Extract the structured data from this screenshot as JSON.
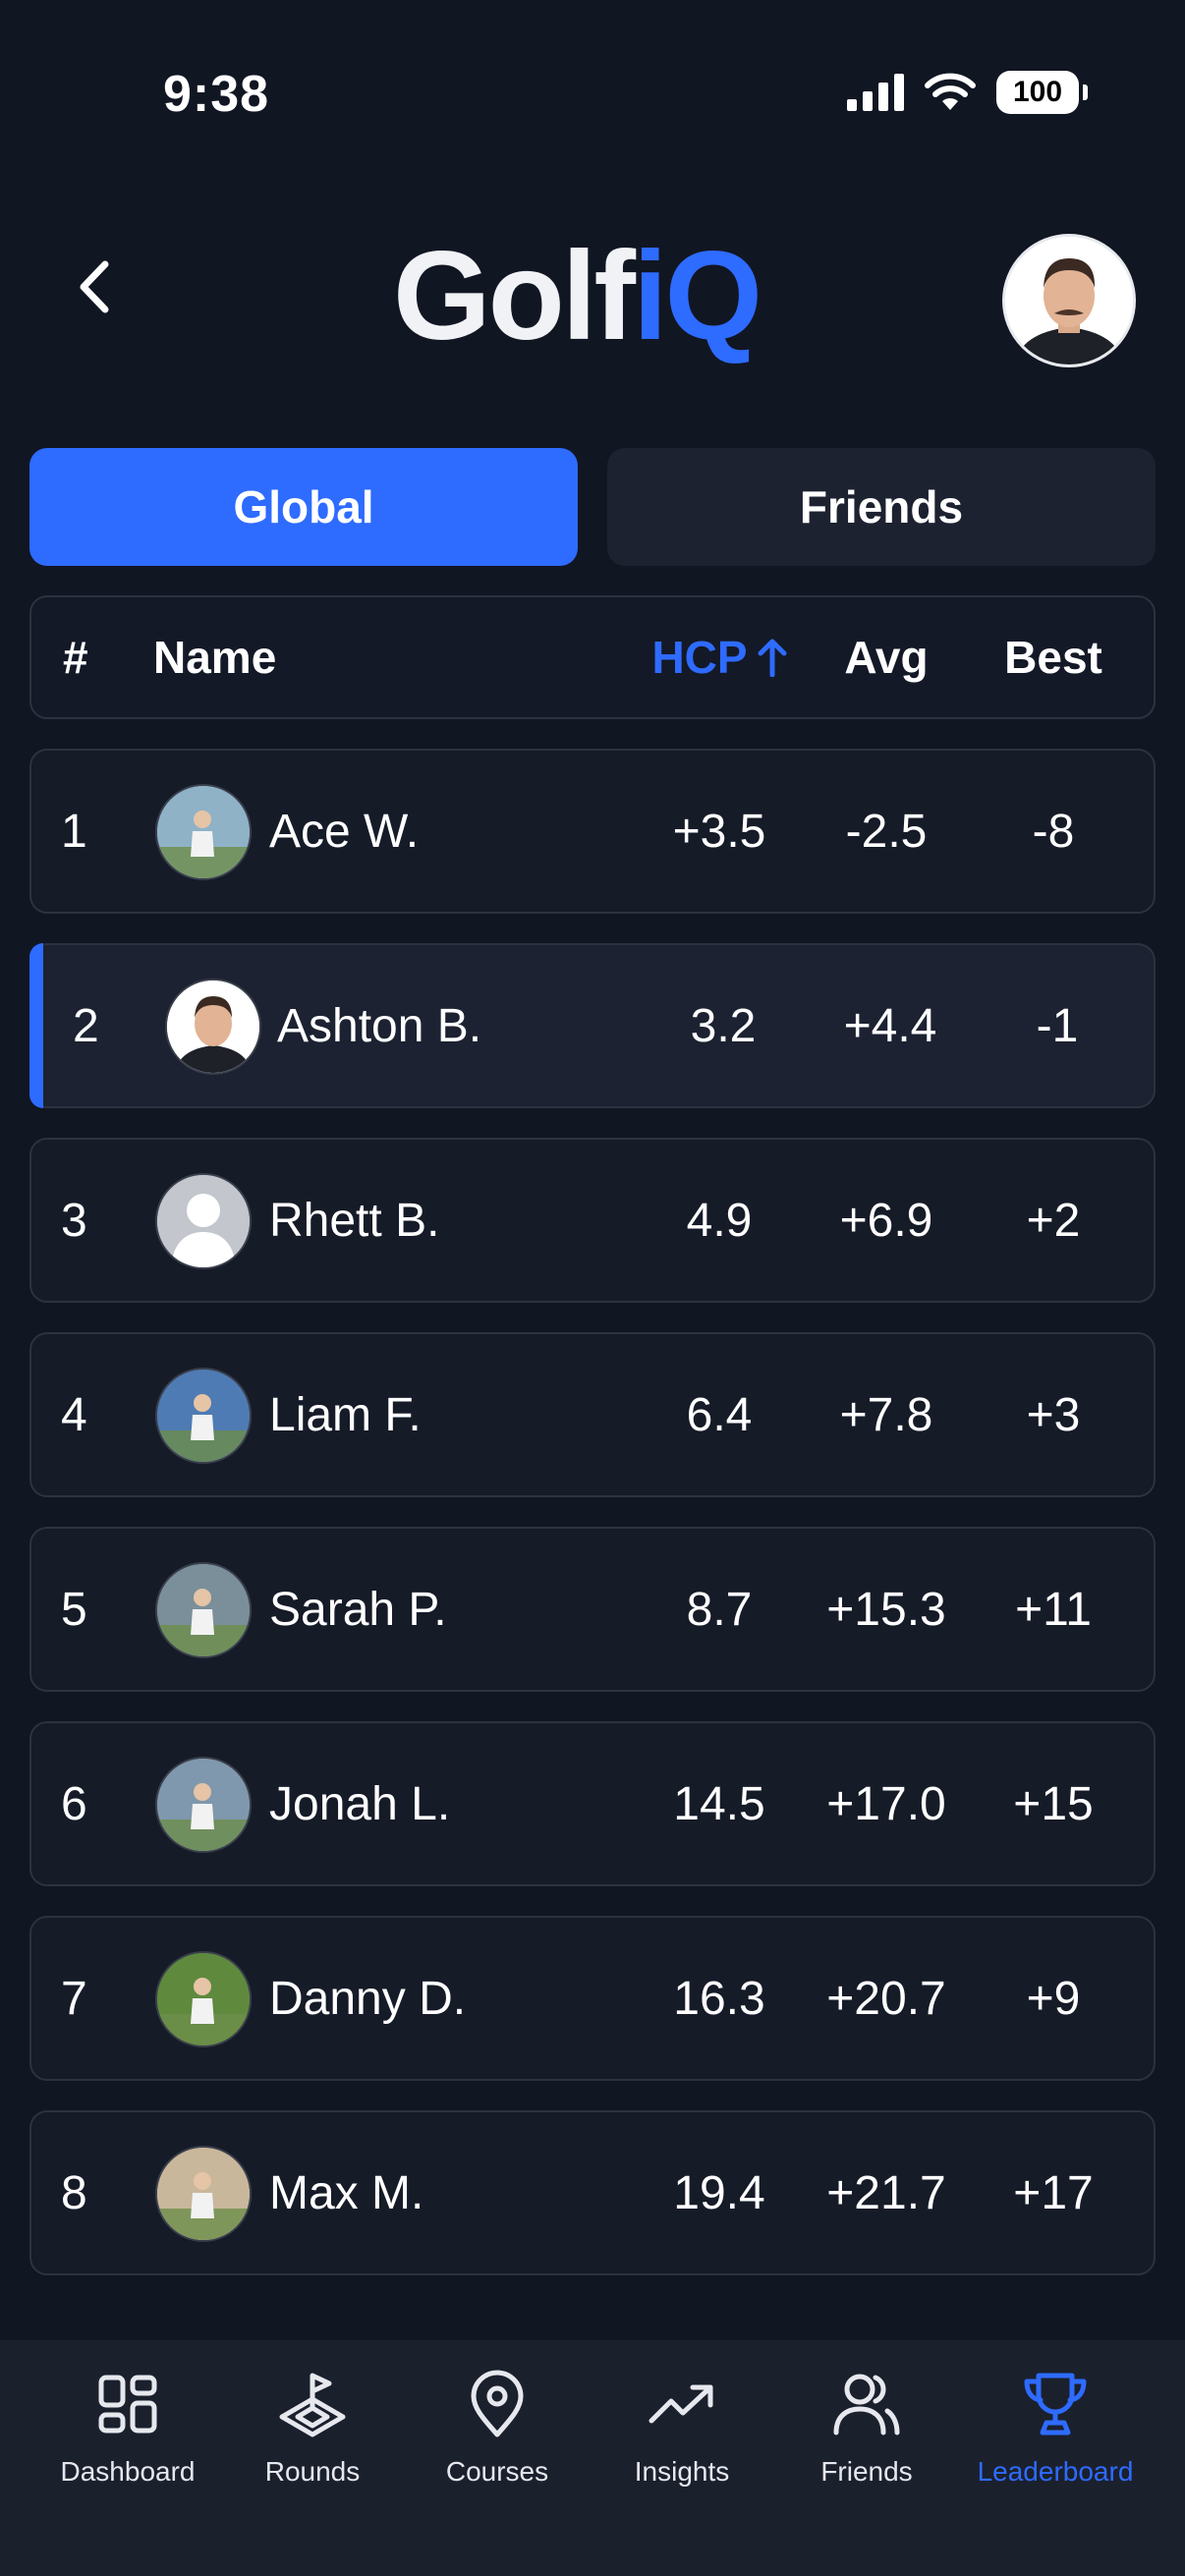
{
  "status": {
    "time": "9:38",
    "battery": "100"
  },
  "header": {
    "logo_part1": "Golf",
    "logo_part2": "iQ",
    "back_icon": "chevron-left-icon",
    "avatar_icon": "user-avatar"
  },
  "tabs": [
    {
      "label": "Global",
      "active": true
    },
    {
      "label": "Friends",
      "active": false
    }
  ],
  "table": {
    "headers": {
      "rank": "#",
      "name": "Name",
      "hcp": "HCP",
      "avg": "Avg",
      "best": "Best"
    },
    "sort_icon": "arrow-up-icon",
    "rows": [
      {
        "rank": "1",
        "name": "Ace W.",
        "hcp": "+3.5",
        "avg": "-2.5",
        "best": "-8",
        "avatar_color": "#8fb2c7",
        "avatar_icon": "golfer-photo"
      },
      {
        "rank": "2",
        "name": "Ashton B.",
        "hcp": "3.2",
        "avg": "+4.4",
        "best": "-1",
        "avatar_color": "#ffffff",
        "avatar_icon": "person-photo"
      },
      {
        "rank": "3",
        "name": "Rhett B.",
        "hcp": "4.9",
        "avg": "+6.9",
        "best": "+2",
        "avatar_color": "#bfc2c9",
        "avatar_icon": "default-user-icon"
      },
      {
        "rank": "4",
        "name": "Liam F.",
        "hcp": "6.4",
        "avg": "+7.8",
        "best": "+3",
        "avatar_color": "#4e7bb3",
        "avatar_icon": "golfer-photo"
      },
      {
        "rank": "5",
        "name": "Sarah P.",
        "hcp": "8.7",
        "avg": "+15.3",
        "best": "+11",
        "avatar_color": "#7a8f9a",
        "avatar_icon": "golfer-photo"
      },
      {
        "rank": "6",
        "name": "Jonah L.",
        "hcp": "14.5",
        "avg": "+17.0",
        "best": "+15",
        "avatar_color": "#7f98ad",
        "avatar_icon": "group-photo"
      },
      {
        "rank": "7",
        "name": "Danny D.",
        "hcp": "16.3",
        "avg": "+20.7",
        "best": "+9",
        "avatar_color": "#5f8a3d",
        "avatar_icon": "golf-ball-photo"
      },
      {
        "rank": "8",
        "name": "Max M.",
        "hcp": "19.4",
        "avg": "+21.7",
        "best": "+17",
        "avatar_color": "#c9b79c",
        "avatar_icon": "golfer-photo"
      }
    ],
    "highlight_index": 1
  },
  "nav": [
    {
      "label": "Dashboard",
      "icon": "dashboard-icon",
      "active": false
    },
    {
      "label": "Rounds",
      "icon": "flag-green-icon",
      "active": false
    },
    {
      "label": "Courses",
      "icon": "map-pin-icon",
      "active": false
    },
    {
      "label": "Insights",
      "icon": "trend-up-icon",
      "active": false
    },
    {
      "label": "Friends",
      "icon": "friends-icon",
      "active": false
    },
    {
      "label": "Leaderboard",
      "icon": "trophy-icon",
      "active": true
    }
  ],
  "colors": {
    "background": "#111623",
    "accent": "#2e6bff",
    "card": "#161b28",
    "border": "#2d3240"
  }
}
